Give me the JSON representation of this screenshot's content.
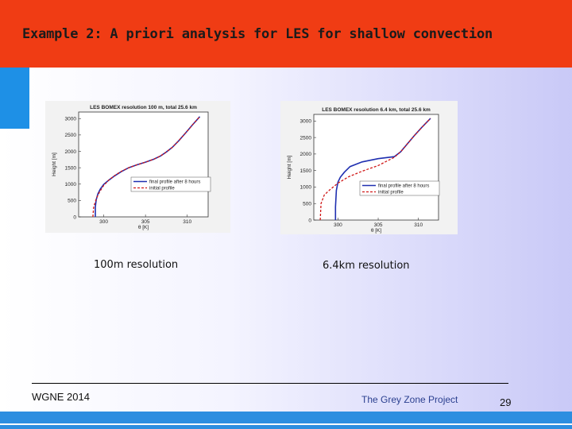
{
  "slide": {
    "title": "Example 2: A priori analysis for LES for  shallow convection",
    "caption_left": "100m resolution",
    "caption_right": "6.4km resolution",
    "footer_left": "WGNE 2014",
    "footer_center": "The Grey Zone Project",
    "page_number": "29",
    "colors": {
      "header": "#f03c14",
      "accent_blue": "#1e90e6",
      "final_line": "#1f2fb0",
      "initial_line": "#d01818"
    }
  },
  "chart_data": [
    {
      "type": "line",
      "title": "LES BOMEX resolution 100 m, total 25.6 km",
      "xlabel": "θ [K]",
      "ylabel": "Height [m]",
      "xlim": [
        297,
        312.5
      ],
      "ylim": [
        0,
        3200
      ],
      "xticks": [
        300,
        305,
        310
      ],
      "xtick_labels": [
        "300",
        "305",
        "310"
      ],
      "yticks": [
        0,
        500,
        1000,
        1500,
        2000,
        2500,
        3000
      ],
      "ytick_labels": [
        "0",
        "500",
        "1000",
        "1500",
        "2000",
        "2500",
        "3000"
      ],
      "legend_position": "right",
      "series": [
        {
          "name": "final profile after 8 hours",
          "color": "#1f2fb0",
          "style": "solid",
          "x": [
            299.0,
            299.0,
            299.1,
            299.3,
            299.6,
            300.0,
            300.6,
            301.3,
            302.1,
            303.0,
            304.0,
            305.0,
            306.0,
            306.8,
            307.5,
            308.2,
            309.0,
            309.8,
            310.6,
            311.5
          ],
          "y": [
            0,
            300,
            520,
            700,
            850,
            990,
            1120,
            1250,
            1380,
            1500,
            1590,
            1670,
            1760,
            1860,
            1980,
            2120,
            2330,
            2560,
            2800,
            3060
          ]
        },
        {
          "name": "initial profile",
          "color": "#d01818",
          "style": "dashed",
          "x": [
            298.7,
            298.8,
            299.1,
            299.5,
            300.0,
            300.6,
            301.3,
            302.1,
            303.0,
            304.0,
            305.0,
            306.0,
            306.8,
            307.5,
            308.2,
            309.0,
            309.8,
            310.6,
            311.5
          ],
          "y": [
            0,
            300,
            550,
            760,
            960,
            1120,
            1260,
            1390,
            1500,
            1590,
            1670,
            1760,
            1860,
            1980,
            2120,
            2330,
            2560,
            2800,
            3060
          ]
        }
      ]
    },
    {
      "type": "line",
      "title": "LES BOMEX resolution 6.4 km, total 25.6 km",
      "xlabel": "θ [K]",
      "ylabel": "Height [m]",
      "xlim": [
        297,
        312.5
      ],
      "ylim": [
        0,
        3200
      ],
      "xticks": [
        300,
        305,
        310
      ],
      "xtick_labels": [
        "300",
        "305",
        "310"
      ],
      "yticks": [
        0,
        500,
        1000,
        1500,
        2000,
        2500,
        3000
      ],
      "ytick_labels": [
        "0",
        "500",
        "1000",
        "1500",
        "2000",
        "2500",
        "3000"
      ],
      "legend_position": "right",
      "series": [
        {
          "name": "final profile after 8 hours",
          "color": "#1f2fb0",
          "style": "solid",
          "x": [
            299.7,
            299.7,
            299.8,
            300.0,
            300.3,
            300.8,
            301.5,
            303.0,
            305.0,
            307.0,
            307.8,
            308.6,
            309.5,
            310.4,
            311.5
          ],
          "y": [
            0,
            400,
            900,
            1150,
            1300,
            1450,
            1620,
            1760,
            1860,
            1920,
            2070,
            2300,
            2560,
            2800,
            3080
          ]
        },
        {
          "name": "initial profile",
          "color": "#d01818",
          "style": "dashed",
          "x": [
            297.8,
            297.9,
            298.3,
            299.0,
            300.0,
            301.3,
            303.0,
            305.0,
            307.0,
            307.8,
            308.6,
            309.5,
            310.4,
            311.5
          ],
          "y": [
            0,
            500,
            760,
            920,
            1120,
            1310,
            1480,
            1650,
            1900,
            2070,
            2300,
            2560,
            2800,
            3080
          ]
        }
      ]
    }
  ]
}
